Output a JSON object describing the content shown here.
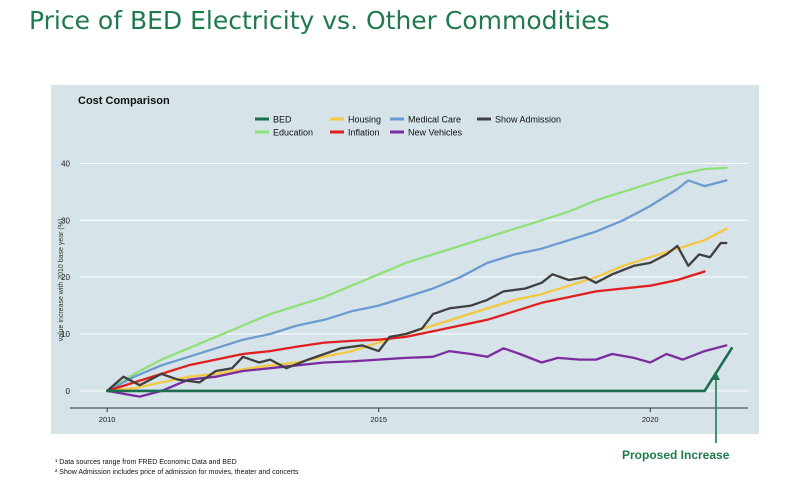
{
  "slide_title": "Price of BED Electricity vs. Other Commodities",
  "footnotes": [
    "¹ Data sources range from FRED Economic Data and BED",
    "² Show Admission includes price of admission for movies, theater and concerts"
  ],
  "callout": "Proposed Increase",
  "colors": {
    "title": "#1f7a4d",
    "panel": "#d6e3e8",
    "callout": "#1f7a4d"
  },
  "chart_data": {
    "type": "line",
    "title": "Cost Comparison",
    "ylabel": "value increase with 2010 base year (%)",
    "xlabel": "",
    "xlim": [
      2009.5,
      2021.8
    ],
    "ylim": [
      -3,
      42
    ],
    "xticks": [
      2010,
      2015,
      2020
    ],
    "yticks": [
      0,
      10,
      20,
      30,
      40
    ],
    "grid": true,
    "legend_position": "top-center",
    "series": [
      {
        "name": "BED",
        "color": "#1b6e4f",
        "points": [
          [
            2010,
            0
          ],
          [
            2010.8,
            0
          ],
          [
            2021.0,
            0
          ],
          [
            2021.5,
            7.5
          ]
        ]
      },
      {
        "name": "Housing",
        "color": "#f5c842",
        "points": [
          [
            2010,
            0
          ],
          [
            2010.5,
            0.5
          ],
          [
            2011,
            1.5
          ],
          [
            2011.5,
            2.5
          ],
          [
            2012,
            3
          ],
          [
            2012.5,
            3.8
          ],
          [
            2013,
            4.5
          ],
          [
            2013.5,
            5
          ],
          [
            2014,
            6
          ],
          [
            2014.5,
            7
          ],
          [
            2015,
            8.5
          ],
          [
            2015.5,
            10
          ],
          [
            2016,
            11.5
          ],
          [
            2016.5,
            13
          ],
          [
            2017,
            14.5
          ],
          [
            2017.5,
            16
          ],
          [
            2018,
            17
          ],
          [
            2018.5,
            18.5
          ],
          [
            2019,
            20
          ],
          [
            2019.5,
            22
          ],
          [
            2020,
            23.5
          ],
          [
            2020.5,
            25
          ],
          [
            2021,
            26.5
          ],
          [
            2021.4,
            28.5
          ]
        ]
      },
      {
        "name": "Medical Care",
        "color": "#6b9bd1",
        "points": [
          [
            2010,
            0
          ],
          [
            2010.5,
            2.5
          ],
          [
            2011,
            4.5
          ],
          [
            2011.5,
            6
          ],
          [
            2012,
            7.5
          ],
          [
            2012.5,
            9
          ],
          [
            2013,
            10
          ],
          [
            2013.5,
            11.5
          ],
          [
            2014,
            12.5
          ],
          [
            2014.5,
            14
          ],
          [
            2015,
            15
          ],
          [
            2015.5,
            16.5
          ],
          [
            2016,
            18
          ],
          [
            2016.5,
            20
          ],
          [
            2017,
            22.5
          ],
          [
            2017.5,
            24
          ],
          [
            2018,
            25
          ],
          [
            2018.5,
            26.5
          ],
          [
            2019,
            28
          ],
          [
            2019.5,
            30
          ],
          [
            2020,
            32.5
          ],
          [
            2020.5,
            35.5
          ],
          [
            2020.7,
            37
          ],
          [
            2021,
            36
          ],
          [
            2021.4,
            37
          ]
        ]
      },
      {
        "name": "Show Admission",
        "color": "#404040",
        "points": [
          [
            2010,
            0
          ],
          [
            2010.3,
            2.5
          ],
          [
            2010.6,
            1
          ],
          [
            2011,
            3
          ],
          [
            2011.3,
            2
          ],
          [
            2011.7,
            1.5
          ],
          [
            2012,
            3.5
          ],
          [
            2012.3,
            4
          ],
          [
            2012.5,
            6
          ],
          [
            2012.8,
            5
          ],
          [
            2013,
            5.5
          ],
          [
            2013.3,
            4
          ],
          [
            2013.7,
            5.5
          ],
          [
            2014,
            6.5
          ],
          [
            2014.3,
            7.5
          ],
          [
            2014.7,
            8
          ],
          [
            2015,
            7
          ],
          [
            2015.2,
            9.5
          ],
          [
            2015.5,
            10
          ],
          [
            2015.8,
            11
          ],
          [
            2016,
            13.5
          ],
          [
            2016.3,
            14.5
          ],
          [
            2016.7,
            15
          ],
          [
            2017,
            16
          ],
          [
            2017.3,
            17.5
          ],
          [
            2017.7,
            18
          ],
          [
            2018,
            19
          ],
          [
            2018.2,
            20.5
          ],
          [
            2018.5,
            19.5
          ],
          [
            2018.8,
            20
          ],
          [
            2019,
            19
          ],
          [
            2019.3,
            20.5
          ],
          [
            2019.7,
            22
          ],
          [
            2020,
            22.5
          ],
          [
            2020.3,
            24
          ],
          [
            2020.5,
            25.5
          ],
          [
            2020.7,
            22
          ],
          [
            2020.9,
            24
          ],
          [
            2021.1,
            23.5
          ],
          [
            2021.3,
            26
          ],
          [
            2021.4,
            26
          ]
        ]
      },
      {
        "name": "Education",
        "color": "#90e07a",
        "points": [
          [
            2010,
            0
          ],
          [
            2010.5,
            3
          ],
          [
            2011,
            5.5
          ],
          [
            2011.5,
            7.5
          ],
          [
            2012,
            9.5
          ],
          [
            2012.5,
            11.5
          ],
          [
            2013,
            13.5
          ],
          [
            2013.5,
            15
          ],
          [
            2014,
            16.5
          ],
          [
            2014.5,
            18.5
          ],
          [
            2015,
            20.5
          ],
          [
            2015.5,
            22.5
          ],
          [
            2016,
            24
          ],
          [
            2016.5,
            25.5
          ],
          [
            2017,
            27
          ],
          [
            2017.5,
            28.5
          ],
          [
            2018,
            30
          ],
          [
            2018.5,
            31.5
          ],
          [
            2019,
            33.5
          ],
          [
            2019.5,
            35
          ],
          [
            2020,
            36.5
          ],
          [
            2020.5,
            38
          ],
          [
            2021,
            39
          ],
          [
            2021.4,
            39.2
          ]
        ]
      },
      {
        "name": "Inflation",
        "color": "#e02020",
        "points": [
          [
            2010,
            0
          ],
          [
            2010.5,
            1.5
          ],
          [
            2011,
            3
          ],
          [
            2011.5,
            4.5
          ],
          [
            2012,
            5.5
          ],
          [
            2012.5,
            6.5
          ],
          [
            2013,
            7
          ],
          [
            2013.5,
            7.8
          ],
          [
            2014,
            8.5
          ],
          [
            2014.5,
            8.8
          ],
          [
            2015,
            9
          ],
          [
            2015.5,
            9.5
          ],
          [
            2016,
            10.5
          ],
          [
            2016.5,
            11.5
          ],
          [
            2017,
            12.5
          ],
          [
            2017.5,
            14
          ],
          [
            2018,
            15.5
          ],
          [
            2018.5,
            16.5
          ],
          [
            2019,
            17.5
          ],
          [
            2019.5,
            18
          ],
          [
            2020,
            18.5
          ],
          [
            2020.5,
            19.5
          ],
          [
            2021,
            21
          ]
        ]
      },
      {
        "name": "New Vehicles",
        "color": "#7b2d9e",
        "points": [
          [
            2010,
            0
          ],
          [
            2010.3,
            -0.5
          ],
          [
            2010.6,
            -1
          ],
          [
            2011,
            0
          ],
          [
            2011.5,
            2
          ],
          [
            2012,
            2.5
          ],
          [
            2012.5,
            3.5
          ],
          [
            2013,
            4
          ],
          [
            2013.5,
            4.5
          ],
          [
            2014,
            5
          ],
          [
            2014.5,
            5.2
          ],
          [
            2015,
            5.5
          ],
          [
            2015.5,
            5.8
          ],
          [
            2016,
            6
          ],
          [
            2016.3,
            7
          ],
          [
            2016.7,
            6.5
          ],
          [
            2017,
            6
          ],
          [
            2017.3,
            7.5
          ],
          [
            2017.6,
            6.5
          ],
          [
            2018,
            5
          ],
          [
            2018.3,
            5.8
          ],
          [
            2018.7,
            5.5
          ],
          [
            2019,
            5.5
          ],
          [
            2019.3,
            6.5
          ],
          [
            2019.7,
            5.8
          ],
          [
            2020,
            5
          ],
          [
            2020.3,
            6.5
          ],
          [
            2020.6,
            5.5
          ],
          [
            2021,
            7
          ],
          [
            2021.4,
            8
          ]
        ]
      }
    ]
  }
}
